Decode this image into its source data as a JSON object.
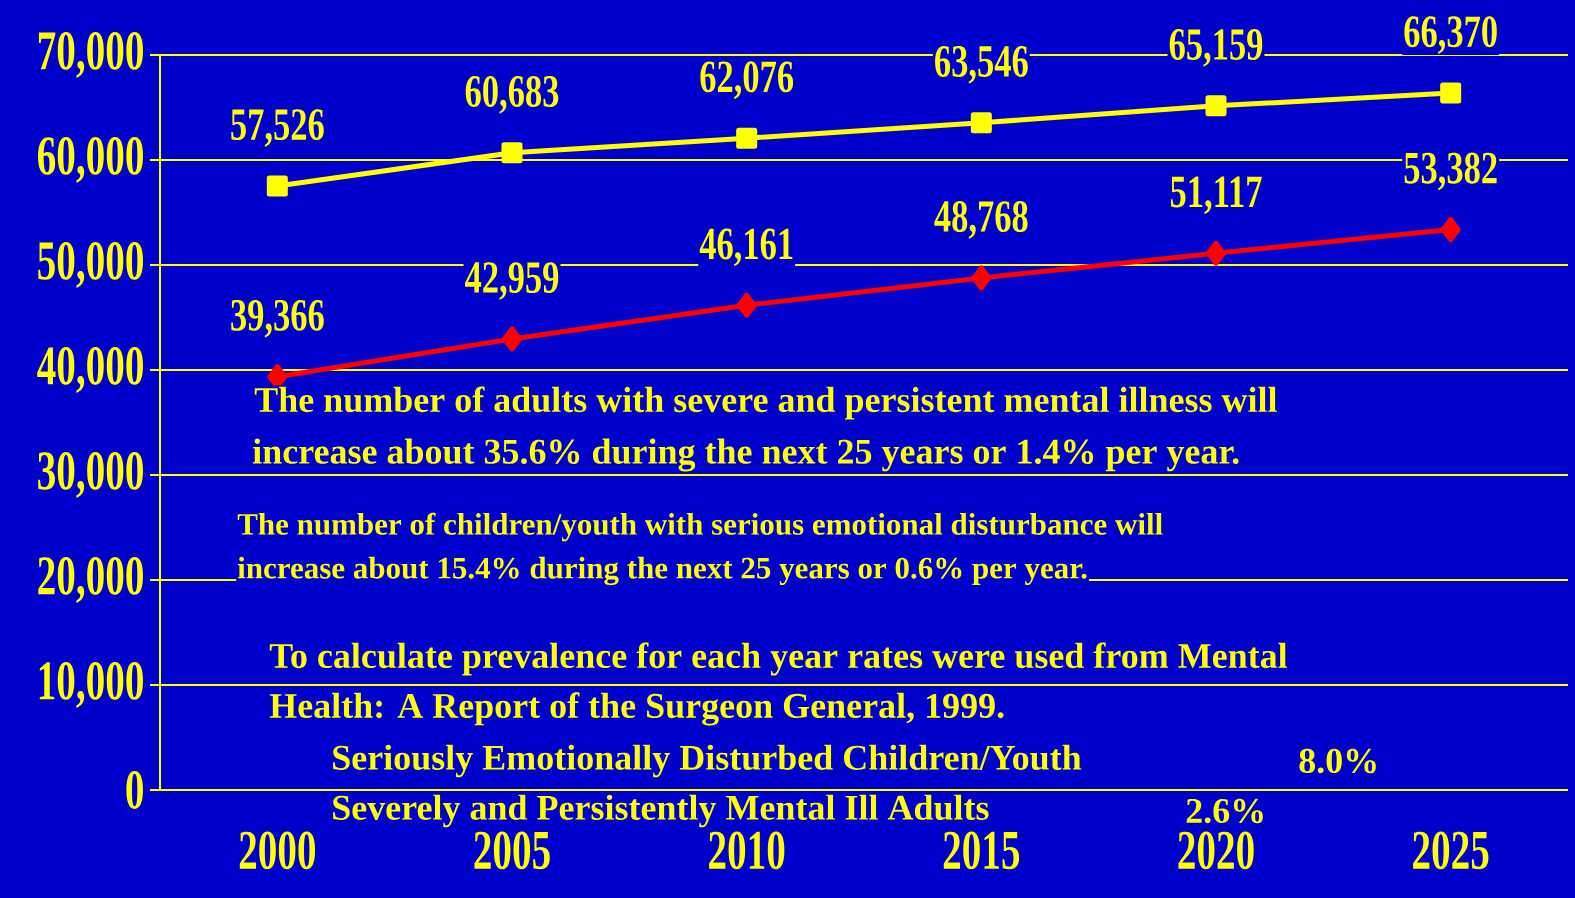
{
  "chart_data": {
    "type": "line",
    "categories": [
      "2000",
      "2005",
      "2010",
      "2015",
      "2020",
      "2025"
    ],
    "ylim": [
      0,
      70000
    ],
    "yticks": [
      0,
      {
        "value": 10000,
        "label": "10,000"
      },
      {
        "value": 20000,
        "label": "20,000"
      },
      {
        "value": 30000,
        "label": "30,000"
      },
      {
        "value": 40000,
        "label": "40,000"
      },
      {
        "value": 50000,
        "label": "50,000"
      },
      {
        "value": 60000,
        "label": "60,000"
      },
      {
        "value": 70000,
        "label": "70,000"
      }
    ],
    "grid": "y",
    "line_style": "solid",
    "series": [
      {
        "color": "#ffff00",
        "marker": "square",
        "values": [
          57526,
          60683,
          62076,
          63546,
          65159,
          66370
        ],
        "value_labels": [
          "57,526",
          "60,683",
          "62,076",
          "63,546",
          "65,159",
          "66,370"
        ]
      },
      {
        "color": "#ff0000",
        "marker": "diamond",
        "values": [
          39366,
          42959,
          46161,
          48768,
          51117,
          53382
        ],
        "value_labels": [
          "39,366",
          "42,959",
          "46,161",
          "48,768",
          "51,117",
          "53,382"
        ]
      }
    ],
    "annotations": [
      "The number of adults with severe and persistent mental illness will",
      "increase about 35.6% during the next 25 years or 1.4% per year.",
      "The number of children/youth with serious emotional disturbance will",
      "increase about 15.4% during the next 25 years or 0.6% per year.",
      "To calculate prevalence for each year rates were used from Mental",
      "Health: A Report of the Surgeon General, 1999.",
      "Seriously Emotionally Disturbed Children/Youth",
      "8.0%",
      "Severely and Persistently Mental Ill Adults",
      "2.6%"
    ]
  }
}
